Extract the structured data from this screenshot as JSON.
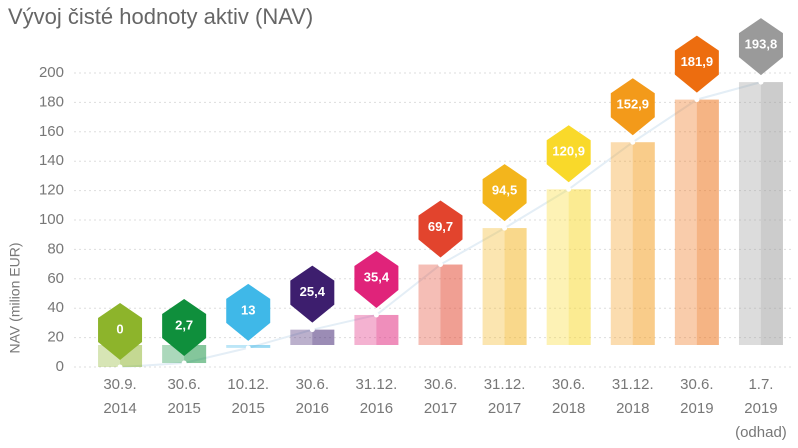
{
  "chart_data": {
    "type": "bar",
    "title": "Vývoj čisté hodnoty aktiv (NAV)",
    "y_label": "NAV (milion EUR)",
    "categories": [
      "30.9.\n2014",
      "30.6.\n2015",
      "10.12.\n2015",
      "30.6.\n2016",
      "31.12.\n2016",
      "30.6.\n2017",
      "31.12.\n2017",
      "30.6.\n2018",
      "31.12.\n2018",
      "30.6.\n2019",
      "1.7.\n2019\n(odhad)"
    ],
    "values": [
      0,
      2.7,
      13,
      25.4,
      35.4,
      69.7,
      94.5,
      120.9,
      152.9,
      181.9,
      193.8
    ],
    "value_labels": [
      "0",
      "2,7",
      "13",
      "25,4",
      "35,4",
      "69,7",
      "94,5",
      "120,9",
      "152,9",
      "181,9",
      "193,8"
    ],
    "colors": [
      "#8db42b",
      "#0f8f3c",
      "#3fb8e8",
      "#3d1e6e",
      "#e0237a",
      "#e2442d",
      "#f3b51c",
      "#f9d92a",
      "#f39a1a",
      "#ed6d0f",
      "#9a9a9a"
    ],
    "ylim": [
      0,
      200
    ],
    "yticks": [
      0,
      20,
      40,
      60,
      80,
      100,
      120,
      140,
      160,
      180,
      200
    ],
    "grid": true
  }
}
